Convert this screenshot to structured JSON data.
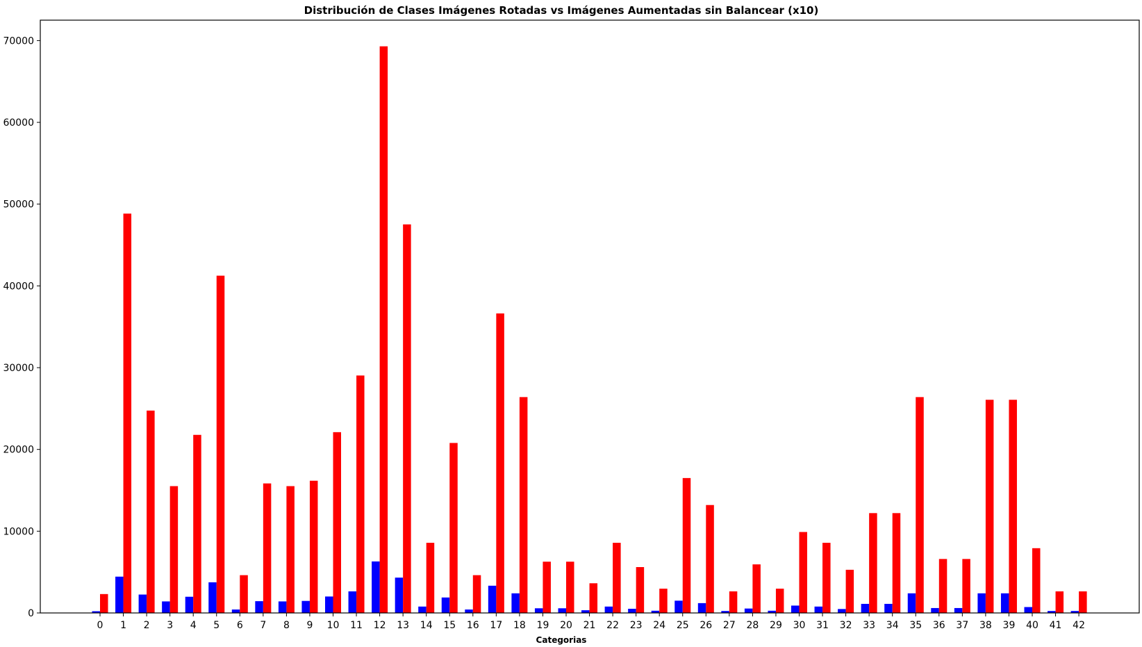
{
  "chart_data": {
    "type": "bar",
    "title": "Distribución de Clases Imágenes Rotadas vs Imágenes Aumentadas sin Balancear (x10)",
    "xlabel": "Categorias",
    "ylabel": "",
    "ylim": [
      0,
      72500
    ],
    "yticks": [
      0,
      10000,
      20000,
      30000,
      40000,
      50000,
      60000,
      70000
    ],
    "categories": [
      "0",
      "1",
      "2",
      "3",
      "4",
      "5",
      "6",
      "7",
      "8",
      "9",
      "10",
      "11",
      "12",
      "13",
      "14",
      "15",
      "16",
      "17",
      "18",
      "19",
      "20",
      "21",
      "22",
      "23",
      "24",
      "25",
      "26",
      "27",
      "28",
      "29",
      "30",
      "31",
      "32",
      "33",
      "34",
      "35",
      "36",
      "37",
      "38",
      "39",
      "40",
      "41",
      "42"
    ],
    "series": [
      {
        "color": "#0000ff",
        "values": [
          210,
          4440,
          2250,
          1410,
          1980,
          3750,
          420,
          1440,
          1410,
          1470,
          2010,
          2640,
          6300,
          4320,
          780,
          1890,
          420,
          3330,
          2400,
          570,
          570,
          330,
          780,
          510,
          270,
          1500,
          1200,
          240,
          540,
          270,
          900,
          780,
          480,
          1110,
          1110,
          2400,
          600,
          600,
          2400,
          2400,
          720,
          240,
          240
        ]
      },
      {
        "color": "#ff0000",
        "values": [
          2310,
          48840,
          24750,
          15510,
          21780,
          41250,
          4620,
          15840,
          15510,
          16170,
          22110,
          29040,
          69300,
          47520,
          8580,
          20790,
          4620,
          36630,
          26400,
          6270,
          6270,
          3630,
          8580,
          5610,
          2970,
          16500,
          13200,
          2640,
          5940,
          2970,
          9900,
          8580,
          5280,
          12210,
          12210,
          26400,
          6600,
          6600,
          26070,
          26070,
          7920,
          2640,
          2640
        ]
      }
    ],
    "grid": false,
    "legend": "none"
  }
}
